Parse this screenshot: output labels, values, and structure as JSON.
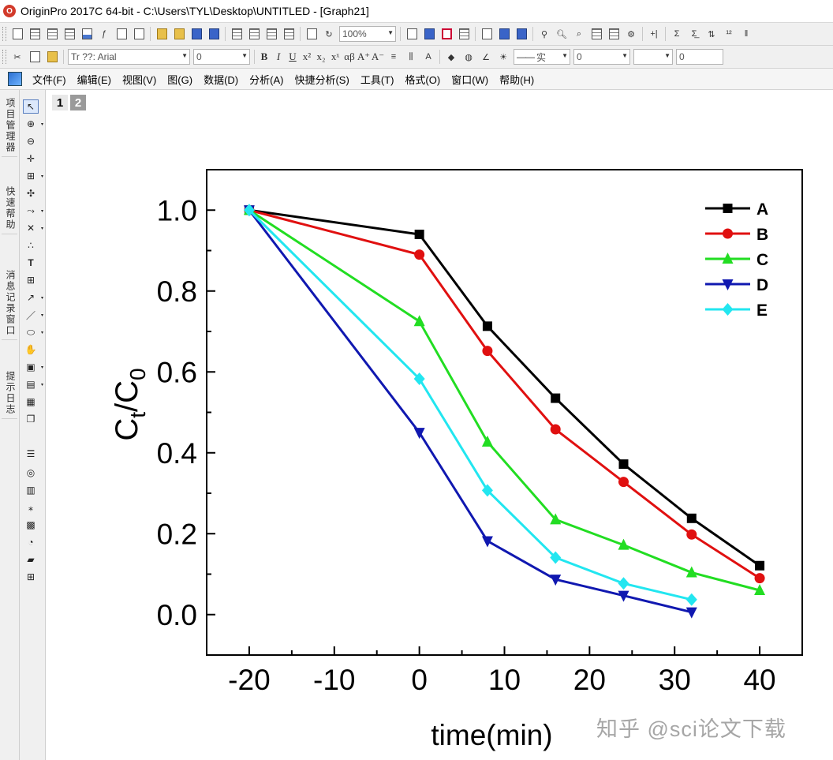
{
  "window": {
    "title": "OriginPro 2017C 64-bit - C:\\Users\\TYL\\Desktop\\UNTITLED - [Graph21]"
  },
  "toolbar": {
    "zoom": "100%",
    "font_name": "Tr ??: Arial",
    "font_size": "0",
    "line_style_label": "实",
    "line_width": "0",
    "extra_value": "0"
  },
  "menu": {
    "items": [
      "文件(F)",
      "编辑(E)",
      "视图(V)",
      "图(G)",
      "数据(D)",
      "分析(A)",
      "快捷分析(S)",
      "工具(T)",
      "格式(O)",
      "窗口(W)",
      "帮助(H)"
    ]
  },
  "side_panels": {
    "tabs": [
      "项目管理器",
      "快速帮助",
      "消息记录窗口",
      "提示日志"
    ]
  },
  "graph": {
    "pages": [
      "1",
      "2"
    ],
    "watermark": "知乎 @sci论文下载"
  },
  "colors": {
    "A": "#000000",
    "B": "#e01010",
    "C": "#22dd22",
    "D": "#1018b0",
    "E": "#22e6f0"
  },
  "chart_data": {
    "type": "line",
    "title": "",
    "xlabel": "time(min)",
    "ylabel_main": "C",
    "ylabel_sub1": "t",
    "ylabel_slash": "/C",
    "ylabel_sub2": "0",
    "xlim": [
      -25,
      45
    ],
    "ylim": [
      -0.1,
      1.1
    ],
    "xticks": [
      -20,
      -10,
      0,
      10,
      20,
      30,
      40
    ],
    "xtick_labels": [
      "-20",
      "-10",
      "0",
      "10",
      "20",
      "30",
      "40"
    ],
    "yticks": [
      0.0,
      0.2,
      0.4,
      0.6,
      0.8,
      1.0
    ],
    "ytick_labels": [
      "0.0",
      "0.2",
      "0.4",
      "0.6",
      "0.8",
      "1.0"
    ],
    "legend": "top-right",
    "series": [
      {
        "name": "A",
        "marker": "square",
        "x": [
          -20,
          0,
          8,
          16,
          24,
          32,
          40
        ],
        "y": [
          1.0,
          0.94,
          0.713,
          0.535,
          0.372,
          0.238,
          0.121
        ]
      },
      {
        "name": "B",
        "marker": "circle",
        "x": [
          -20,
          0,
          8,
          16,
          24,
          32,
          40
        ],
        "y": [
          1.0,
          0.89,
          0.652,
          0.458,
          0.328,
          0.198,
          0.09
        ]
      },
      {
        "name": "C",
        "marker": "triangle-up",
        "x": [
          -20,
          0,
          8,
          16,
          24,
          32,
          40
        ],
        "y": [
          1.0,
          0.725,
          0.427,
          0.235,
          0.172,
          0.104,
          0.06
        ]
      },
      {
        "name": "D",
        "marker": "triangle-down",
        "x": [
          -20,
          0,
          8,
          16,
          24,
          32
        ],
        "y": [
          1.0,
          0.45,
          0.182,
          0.087,
          0.047,
          0.006
        ]
      },
      {
        "name": "E",
        "marker": "diamond",
        "x": [
          -20,
          0,
          8,
          16,
          24,
          32
        ],
        "y": [
          1.0,
          0.583,
          0.307,
          0.141,
          0.077,
          0.037
        ]
      }
    ]
  }
}
